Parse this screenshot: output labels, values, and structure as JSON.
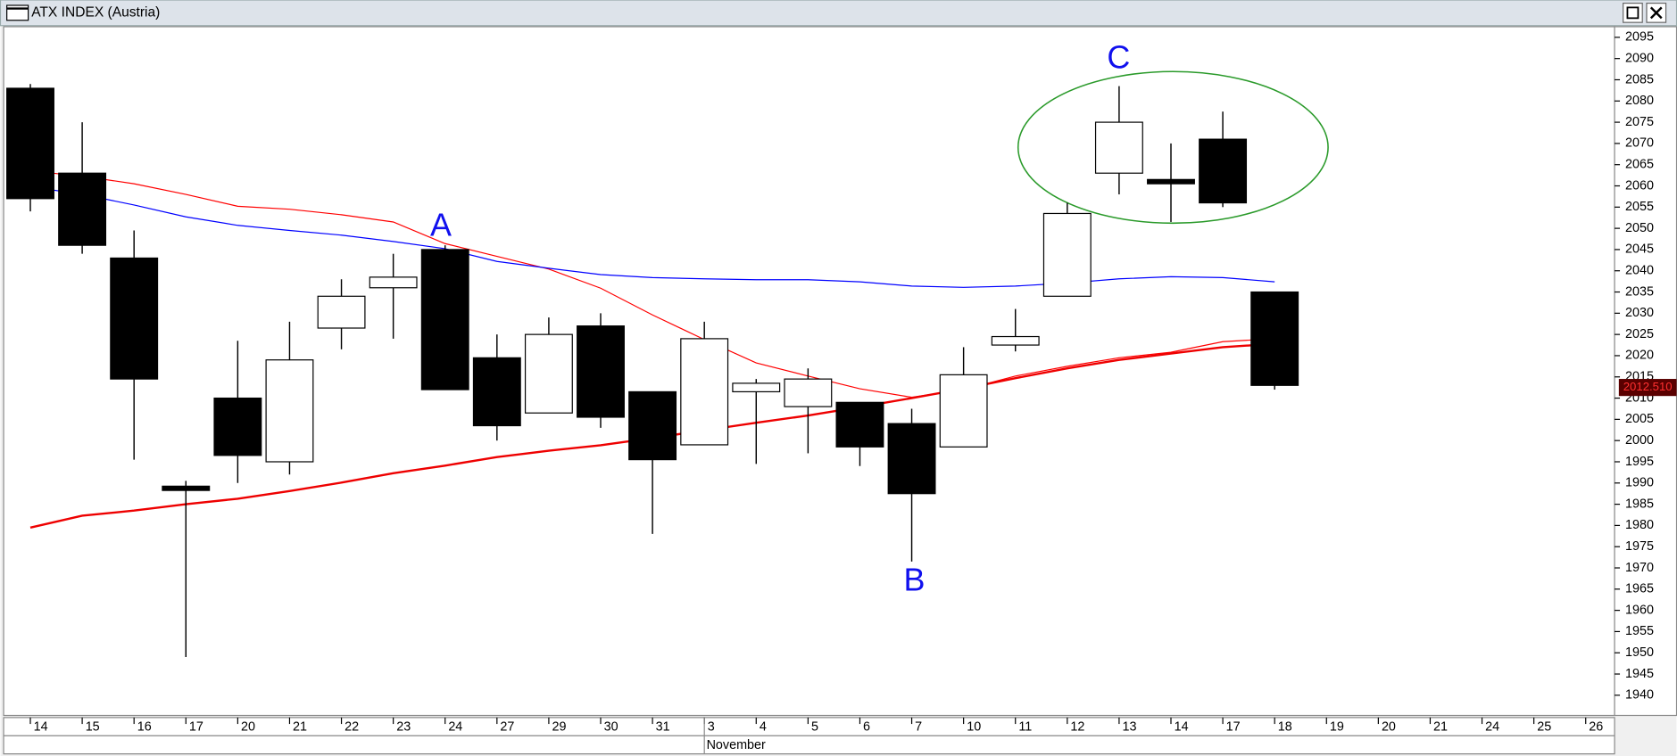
{
  "chart_data": {
    "type": "candlestick",
    "title": "ATX INDEX (Austria)",
    "categories": [
      "14",
      "15",
      "16",
      "17",
      "20",
      "21",
      "22",
      "23",
      "24",
      "27",
      "29",
      "30",
      "31",
      "3",
      "4",
      "5",
      "6",
      "7",
      "10",
      "11",
      "12",
      "13",
      "14",
      "17",
      "18",
      "19",
      "20",
      "21",
      "24",
      "25",
      "26"
    ],
    "x_label": "November",
    "open": [
      2083,
      2063,
      2043,
      1989,
      2010,
      1995,
      2026.5,
      2036,
      2045,
      2019.5,
      2006.5,
      2027,
      2011.5,
      1999,
      2011.5,
      2008,
      2009,
      2004,
      1998.5,
      2022.5,
      2034,
      2063,
      2061.5,
      2071,
      2035,
      null,
      null,
      null,
      null,
      null,
      null
    ],
    "high": [
      2084,
      2075,
      2049.5,
      1990.5,
      2023.5,
      2028,
      2038,
      2044,
      2046,
      2025,
      2029,
      2030,
      2011.5,
      2028,
      2014.5,
      2017,
      2009,
      2007.5,
      2022,
      2031,
      2056,
      2083.5,
      2070,
      2077.5,
      2035,
      null,
      null,
      null,
      null,
      null,
      null
    ],
    "low": [
      2054,
      2044,
      1995.5,
      1949,
      1990,
      1992,
      2021.5,
      2024,
      2012,
      2000,
      2006.5,
      2003,
      1978,
      1999,
      1994.5,
      1997,
      1994,
      1971.5,
      1998.5,
      2021,
      2034,
      2058,
      2051.5,
      2055,
      2012,
      null,
      null,
      null,
      null,
      null,
      null
    ],
    "close": [
      2057,
      2046,
      2014.5,
      1988.5,
      1996.5,
      2019,
      2034,
      2038.5,
      2012,
      2003.5,
      2025,
      2005.5,
      1995.5,
      2024,
      2013.5,
      2014.5,
      1998.5,
      1987.5,
      2015.5,
      2024.5,
      2053.5,
      2075,
      2060.5,
      2056,
      2013,
      null,
      null,
      null,
      null,
      null,
      null
    ],
    "up_color": "#ffffff",
    "down_color": "#000000",
    "series": [
      {
        "color": "#ff0000",
        "width": 1,
        "values": [
          2063.5,
          2062.3,
          2060.5,
          2058,
          2055.2,
          2054.5,
          2053.2,
          2051.5,
          2046.4,
          2043.4,
          2040.4,
          2035.9,
          2029.6,
          2023.8,
          2018.3,
          2015.2,
          2012.2,
          2010.2,
          2012,
          2015.2,
          2017.5,
          2019.5,
          2020.8,
          2023.3,
          2024,
          null,
          null,
          null,
          null,
          null,
          null
        ]
      },
      {
        "color": "#0000ff",
        "width": 1,
        "values": [
          2059.8,
          2058,
          2055.5,
          2052.7,
          2050.7,
          2049.5,
          2048.4,
          2046.9,
          2045.2,
          2042.2,
          2040.6,
          2039.1,
          2038.4,
          2038.1,
          2037.9,
          2037.9,
          2037.4,
          2036.4,
          2036.1,
          2036.4,
          2037.1,
          2038.1,
          2038.6,
          2038.4,
          2037.4,
          null,
          null,
          null,
          null,
          null,
          null
        ]
      },
      {
        "color": "#ee0000",
        "width": 2,
        "values": [
          1979.5,
          1982.3,
          1983.5,
          1985,
          1986.3,
          1988.1,
          1990.1,
          1992.3,
          1994.1,
          1996.1,
          1997.6,
          1998.9,
          2000.6,
          2002.4,
          2004.2,
          2005.9,
          2007.9,
          2010,
          2012.2,
          2014.7,
          2017,
          2019,
          2020.5,
          2022,
          2022.8,
          null,
          null,
          null,
          null,
          null,
          null
        ]
      }
    ],
    "ylim": [
      1936,
      2097
    ],
    "yticks": [
      1940,
      1945,
      1950,
      1955,
      1960,
      1965,
      1970,
      1975,
      1980,
      1985,
      1990,
      1995,
      2000,
      2005,
      2010,
      2015,
      2020,
      2025,
      2030,
      2035,
      2040,
      2045,
      2050,
      2055,
      2060,
      2065,
      2070,
      2075,
      2080,
      2085,
      2090,
      2095
    ],
    "last_price": {
      "value": 2012.51,
      "label": "2012.510"
    },
    "annotations": [
      "A",
      "B",
      "C"
    ]
  }
}
